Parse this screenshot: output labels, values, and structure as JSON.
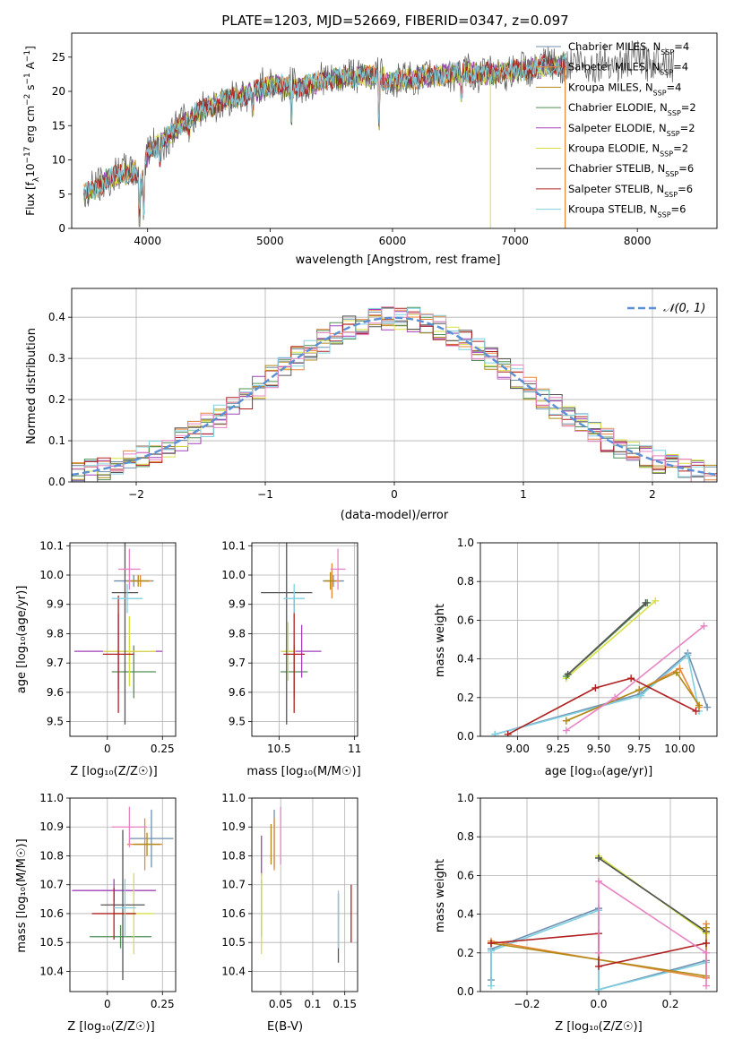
{
  "figure": {
    "title": "PLATE=1203, MJD=52669, FIBERID=0347, z=0.097",
    "colors": {
      "Chabrier MILES": "#6f8faf",
      "Salpeter MILES": "#e8883a",
      "Kroupa MILES": "#b08a18",
      "Chabrier ELODIE": "#4f8f55",
      "Salpeter ELODIE": "#a040b8",
      "Kroupa ELODIE": "#d8e040",
      "Chabrier STELIB": "#555555",
      "Salpeter STELIB": "#b02020",
      "Kroupa STELIB": "#7fd0e0",
      "gaussian": "#5b8fd6"
    }
  },
  "chart_data": [
    {
      "id": "spectrum",
      "type": "line",
      "xlabel": "wavelength [Angstrom, rest frame]",
      "ylabel": "Flux [f_λ 10^-17 erg cm^-2 s^-1 A^-1]",
      "xlim": [
        3380,
        8650
      ],
      "ylim": [
        0,
        28.5
      ],
      "xticks": [
        4000,
        5000,
        6000,
        7000,
        8000
      ],
      "yticks": [
        0,
        5,
        10,
        15,
        20,
        25
      ],
      "grid": false,
      "legend_position": "right",
      "legend": [
        {
          "model": "Chabrier MILES",
          "label": "Chabrier MILES, N",
          "sub": "SSP",
          "n": "=4"
        },
        {
          "model": "Salpeter MILES",
          "label": "Salpeter MILES, N",
          "sub": "SSP",
          "n": "=4"
        },
        {
          "model": "Kroupa MILES",
          "label": "Kroupa MILES, N",
          "sub": "SSP",
          "n": "=4"
        },
        {
          "model": "Chabrier ELODIE",
          "label": "Chabrier ELODIE, N",
          "sub": "SSP",
          "n": "=2"
        },
        {
          "model": "Salpeter ELODIE",
          "label": "Salpeter ELODIE, N",
          "sub": "SSP",
          "n": "=2"
        },
        {
          "model": "Kroupa ELODIE",
          "label": "Kroupa ELODIE, N",
          "sub": "SSP",
          "n": "=2"
        },
        {
          "model": "Chabrier STELIB",
          "label": "Chabrier STELIB, N",
          "sub": "SSP",
          "n": "=6"
        },
        {
          "model": "Salpeter STELIB",
          "label": "Salpeter STELIB, N",
          "sub": "SSP",
          "n": "=6"
        },
        {
          "model": "Kroupa STELIB",
          "label": "Kroupa STELIB, N",
          "sub": "SSP",
          "n": "=6"
        }
      ],
      "continuum": {
        "wavelength": [
          3500,
          3700,
          3900,
          3950,
          4000,
          4200,
          4400,
          4600,
          4800,
          5000,
          5200,
          5400,
          5600,
          5800,
          6000,
          6200,
          6400,
          6600,
          6800,
          7000,
          7200,
          7400,
          7600,
          7800,
          8000,
          8200,
          8300
        ],
        "flux": [
          5,
          7.5,
          8.5,
          6,
          11,
          14,
          17,
          18.5,
          19.5,
          21,
          20.5,
          21.5,
          22,
          22.5,
          21.5,
          22,
          22.5,
          22.8,
          22.5,
          23,
          23.5,
          24,
          24,
          24,
          24.5,
          24.5,
          24
        ]
      }
    },
    {
      "id": "residuals",
      "type": "histogram",
      "xlabel": "(data-model)/error",
      "ylabel": "Normed distribution",
      "xlim": [
        -2.5,
        2.5
      ],
      "ylim": [
        0,
        0.47
      ],
      "xticks": [
        -2,
        -1,
        0,
        1,
        2
      ],
      "yticks": [
        0.0,
        0.1,
        0.2,
        0.3,
        0.4
      ],
      "grid": true,
      "legend_position": "top-right",
      "legend_label": "𝒩(0, 1)",
      "bin_width": 0.1
    },
    {
      "id": "age_vs_Z",
      "type": "scatter",
      "xlabel": "Z [log₁₀(Z/Z☉)]",
      "ylabel": "age  [log₁₀(age/yr)]",
      "xlim": [
        -0.17,
        0.31
      ],
      "ylim": [
        9.45,
        10.11
      ],
      "xticks": [
        0.0,
        0.25
      ],
      "yticks": [
        9.5,
        9.6,
        9.7,
        9.8,
        9.9,
        10.0,
        10.1
      ],
      "grid": true,
      "points": [
        {
          "model": "Chabrier MILES",
          "x": 0.12,
          "y": 9.98,
          "xerr": 0.09,
          "yerr": 0.02
        },
        {
          "model": "Salpeter MILES",
          "x": 0.15,
          "y": 9.98,
          "xerr": 0.05,
          "yerr": 0.02
        },
        {
          "model": "Kroupa MILES",
          "x": 0.14,
          "y": 9.98,
          "xerr": 0.05,
          "yerr": 0.02
        },
        {
          "model": "Chabrier ELODIE",
          "x": 0.12,
          "y": 9.67,
          "xerr": 0.1,
          "yerr": 0.09
        },
        {
          "model": "Salpeter ELODIE",
          "x": 0.05,
          "y": 9.74,
          "xerr": 0.2,
          "yerr": 0.13
        },
        {
          "model": "Kroupa ELODIE",
          "x": 0.1,
          "y": 9.74,
          "xerr": 0.12,
          "yerr": 0.12
        },
        {
          "model": "Chabrier STELIB",
          "x": 0.08,
          "y": 9.94,
          "xerr": 0.06,
          "yerr": 0.45
        },
        {
          "model": "Salpeter STELIB",
          "x": 0.05,
          "y": 9.73,
          "xerr": 0.07,
          "yerr": 0.2
        },
        {
          "model": "Kroupa STELIB",
          "x": 0.09,
          "y": 9.92,
          "xerr": 0.07,
          "yerr": 0.05
        },
        {
          "model": "pink",
          "x": 0.1,
          "y": 10.02,
          "xerr": 0.05,
          "yerr": 0.07
        }
      ]
    },
    {
      "id": "age_vs_mass",
      "type": "scatter",
      "xlabel": "mass [log₁₀(M/M☉)]",
      "ylabel": "",
      "xlim": [
        10.32,
        11.02
      ],
      "ylim": [
        9.45,
        10.11
      ],
      "xticks": [
        10.5,
        11.0
      ],
      "yticks": [
        9.5,
        9.6,
        9.7,
        9.8,
        9.9,
        10.0,
        10.1
      ],
      "grid": true,
      "points": [
        {
          "model": "Chabrier MILES",
          "x": 10.86,
          "y": 9.98,
          "xerr": 0.07,
          "yerr": 0.02
        },
        {
          "model": "Salpeter MILES",
          "x": 10.85,
          "y": 9.98,
          "xerr": 0.05,
          "yerr": 0.06
        },
        {
          "model": "Kroupa MILES",
          "x": 10.84,
          "y": 9.98,
          "xerr": 0.04,
          "yerr": 0.03
        },
        {
          "model": "Chabrier ELODIE",
          "x": 10.6,
          "y": 9.67,
          "xerr": 0.09,
          "yerr": 0.09
        },
        {
          "model": "Salpeter ELODIE",
          "x": 10.65,
          "y": 9.74,
          "xerr": 0.13,
          "yerr": 0.09
        },
        {
          "model": "Kroupa ELODIE",
          "x": 10.56,
          "y": 9.74,
          "xerr": 0.05,
          "yerr": 0.1
        },
        {
          "model": "Chabrier STELIB",
          "x": 10.55,
          "y": 9.94,
          "xerr": 0.17,
          "yerr": 0.45
        },
        {
          "model": "Salpeter STELIB",
          "x": 10.6,
          "y": 9.73,
          "xerr": 0.07,
          "yerr": 0.2
        },
        {
          "model": "Kroupa STELIB",
          "x": 10.6,
          "y": 9.92,
          "xerr": 0.07,
          "yerr": 0.05
        },
        {
          "model": "pink",
          "x": 10.89,
          "y": 10.02,
          "xerr": 0.05,
          "yerr": 0.07
        }
      ]
    },
    {
      "id": "massweight_vs_age",
      "type": "line",
      "xlabel": "age  [log₁₀(age/yr)]",
      "ylabel": "mass weight",
      "xlim": [
        8.77,
        10.23
      ],
      "ylim": [
        0,
        1.0
      ],
      "xticks": [
        9.0,
        9.25,
        9.5,
        9.75,
        10.0
      ],
      "xtick_labels": [
        "9.00",
        "9.25",
        "9.50",
        "9.75",
        "10.00"
      ],
      "yticks": [
        0.0,
        0.2,
        0.4,
        0.6,
        0.8,
        1.0
      ],
      "grid": true,
      "series": [
        {
          "model": "Kroupa ELODIE",
          "x": [
            9.3,
            9.85
          ],
          "y": [
            0.3,
            0.7
          ]
        },
        {
          "model": "Chabrier ELODIE",
          "x": [
            9.3,
            9.8
          ],
          "y": [
            0.31,
            0.69
          ]
        },
        {
          "model": "Chabrier STELIB",
          "x": [
            9.31,
            9.79
          ],
          "y": [
            0.32,
            0.69
          ]
        },
        {
          "model": "Chabrier MILES",
          "x": [
            8.86,
            9.76,
            10.05,
            10.17
          ],
          "y": [
            0.01,
            0.22,
            0.43,
            0.15
          ]
        },
        {
          "model": "Kroupa STELIB",
          "x": [
            8.86,
            9.76,
            10.05,
            10.12
          ],
          "y": [
            0.01,
            0.21,
            0.42,
            0.13
          ]
        },
        {
          "model": "Salpeter MILES",
          "x": [
            9.3,
            9.75,
            10.0,
            10.12
          ],
          "y": [
            0.08,
            0.24,
            0.35,
            0.15
          ]
        },
        {
          "model": "Kroupa MILES",
          "x": [
            9.3,
            9.75,
            9.98,
            10.12
          ],
          "y": [
            0.08,
            0.24,
            0.33,
            0.16
          ]
        },
        {
          "model": "Salpeter STELIB",
          "x": [
            8.94,
            9.48,
            9.7,
            10.1
          ],
          "y": [
            0.01,
            0.25,
            0.3,
            0.13
          ]
        },
        {
          "model": "pink",
          "x": [
            9.3,
            9.6,
            10.15
          ],
          "y": [
            0.03,
            0.2,
            0.57
          ]
        }
      ]
    },
    {
      "id": "mass_vs_Z",
      "type": "scatter",
      "xlabel": "Z [log₁₀(Z/Z☉)]",
      "ylabel": "mass [log₁₀(M/M☉)]",
      "xlim": [
        -0.17,
        0.31
      ],
      "ylim": [
        10.33,
        11.0
      ],
      "xticks": [
        0.0,
        0.25
      ],
      "yticks": [
        10.4,
        10.5,
        10.6,
        10.7,
        10.8,
        10.9,
        11.0
      ],
      "grid": true,
      "points": [
        {
          "model": "Chabrier MILES",
          "x": 0.2,
          "y": 10.86,
          "xerr": 0.1,
          "yerr": 0.1
        },
        {
          "model": "Salpeter MILES",
          "x": 0.17,
          "y": 10.84,
          "xerr": 0.08,
          "yerr": 0.09
        },
        {
          "model": "Kroupa MILES",
          "x": 0.18,
          "y": 10.84,
          "xerr": 0.06,
          "yerr": 0.04
        },
        {
          "model": "Chabrier ELODIE",
          "x": 0.06,
          "y": 10.52,
          "xerr": 0.14,
          "yerr": 0.04
        },
        {
          "model": "Salpeter ELODIE",
          "x": 0.03,
          "y": 10.68,
          "xerr": 0.19,
          "yerr": 0.04
        },
        {
          "model": "Kroupa ELODIE",
          "x": 0.12,
          "y": 10.6,
          "xerr": 0.09,
          "yerr": 0.14
        },
        {
          "model": "Chabrier STELIB",
          "x": 0.07,
          "y": 10.63,
          "xerr": 0.1,
          "yerr": 0.26
        },
        {
          "model": "Salpeter STELIB",
          "x": 0.03,
          "y": 10.6,
          "xerr": 0.1,
          "yerr": 0.09
        },
        {
          "model": "Kroupa STELIB",
          "x": 0.08,
          "y": 10.62,
          "xerr": 0.05,
          "yerr": 0.1
        },
        {
          "model": "pink",
          "x": 0.1,
          "y": 10.9,
          "xerr": 0.08,
          "yerr": 0.07
        }
      ]
    },
    {
      "id": "mass_vs_ebv",
      "type": "scatter",
      "xlabel": "E(B-V)",
      "ylabel": "",
      "xlim": [
        0.005,
        0.17
      ],
      "ylim": [
        10.33,
        11.0
      ],
      "xticks": [
        0.05,
        0.1,
        0.15
      ],
      "yticks": [
        10.4,
        10.5,
        10.6,
        10.7,
        10.8,
        10.9,
        11.0
      ],
      "grid": true,
      "points": [
        {
          "model": "Chabrier MILES",
          "x": 0.04,
          "y": 10.86,
          "xerr": 0.0,
          "yerr": 0.1
        },
        {
          "model": "Salpeter MILES",
          "x": 0.04,
          "y": 10.84,
          "xerr": 0.0,
          "yerr": 0.09
        },
        {
          "model": "Kroupa MILES",
          "x": 0.035,
          "y": 10.84,
          "xerr": 0.0,
          "yerr": 0.07
        },
        {
          "model": "Chabrier ELODIE",
          "x": 0.02,
          "y": 10.62,
          "xerr": 0.0,
          "yerr": 0.1
        },
        {
          "model": "Salpeter ELODIE",
          "x": 0.02,
          "y": 10.8,
          "xerr": 0.0,
          "yerr": 0.07
        },
        {
          "model": "Kroupa ELODIE",
          "x": 0.02,
          "y": 10.6,
          "xerr": 0.0,
          "yerr": 0.14
        },
        {
          "model": "Chabrier STELIB",
          "x": 0.14,
          "y": 10.55,
          "xerr": 0.0,
          "yerr": 0.12
        },
        {
          "model": "Salpeter STELIB",
          "x": 0.16,
          "y": 10.6,
          "xerr": 0.0,
          "yerr": 0.1
        },
        {
          "model": "Kroupa STELIB",
          "x": 0.14,
          "y": 10.58,
          "xerr": 0.0,
          "yerr": 0.1
        },
        {
          "model": "pink",
          "x": 0.05,
          "y": 10.87,
          "xerr": 0.0,
          "yerr": 0.1
        }
      ]
    },
    {
      "id": "massweight_vs_Z",
      "type": "line",
      "xlabel": "Z [log₁₀(Z/Z☉)]",
      "ylabel": "mass weight",
      "xlim": [
        -0.33,
        0.33
      ],
      "ylim": [
        0,
        1.0
      ],
      "xticks": [
        -0.2,
        0.0,
        0.2
      ],
      "xtick_labels": [
        "−0.2",
        "0.0",
        "0.2"
      ],
      "yticks": [
        0.0,
        0.2,
        0.4,
        0.6,
        0.8,
        1.0
      ],
      "grid": true,
      "series": [
        {
          "model": "Kroupa ELODIE",
          "x": [
            0.0,
            0.3
          ],
          "y": [
            0.7,
            0.3
          ]
        },
        {
          "model": "Chabrier ELODIE",
          "x": [
            0.0,
            0.3
          ],
          "y": [
            0.69,
            0.31
          ]
        },
        {
          "model": "Chabrier STELIB",
          "x": [
            0.0,
            0.3
          ],
          "y": [
            0.69,
            0.31
          ]
        },
        {
          "model": "Chabrier MILES",
          "x": [
            -0.3,
            -0.3,
            0.0,
            0.0,
            0.3
          ],
          "y": [
            0.06,
            0.22,
            0.43,
            0.01,
            0.16
          ]
        },
        {
          "model": "Kroupa STELIB",
          "x": [
            -0.3,
            -0.3,
            0.0,
            0.0,
            0.3
          ],
          "y": [
            0.03,
            0.21,
            0.42,
            0.01,
            0.15
          ]
        },
        {
          "model": "Salpeter MILES",
          "x": [
            -0.3,
            0.3,
            0.3
          ],
          "y": [
            0.26,
            0.07,
            0.35
          ]
        },
        {
          "model": "Kroupa MILES",
          "x": [
            -0.3,
            0.3,
            0.3
          ],
          "y": [
            0.25,
            0.08,
            0.33
          ]
        },
        {
          "model": "Salpeter STELIB",
          "x": [
            -0.3,
            0.0,
            0.0,
            0.3
          ],
          "y": [
            0.25,
            0.3,
            0.13,
            0.25
          ]
        },
        {
          "model": "pink",
          "x": [
            0.0,
            0.0,
            0.3,
            0.3
          ],
          "y": [
            0.2,
            0.57,
            0.2,
            0.03
          ]
        }
      ]
    }
  ]
}
